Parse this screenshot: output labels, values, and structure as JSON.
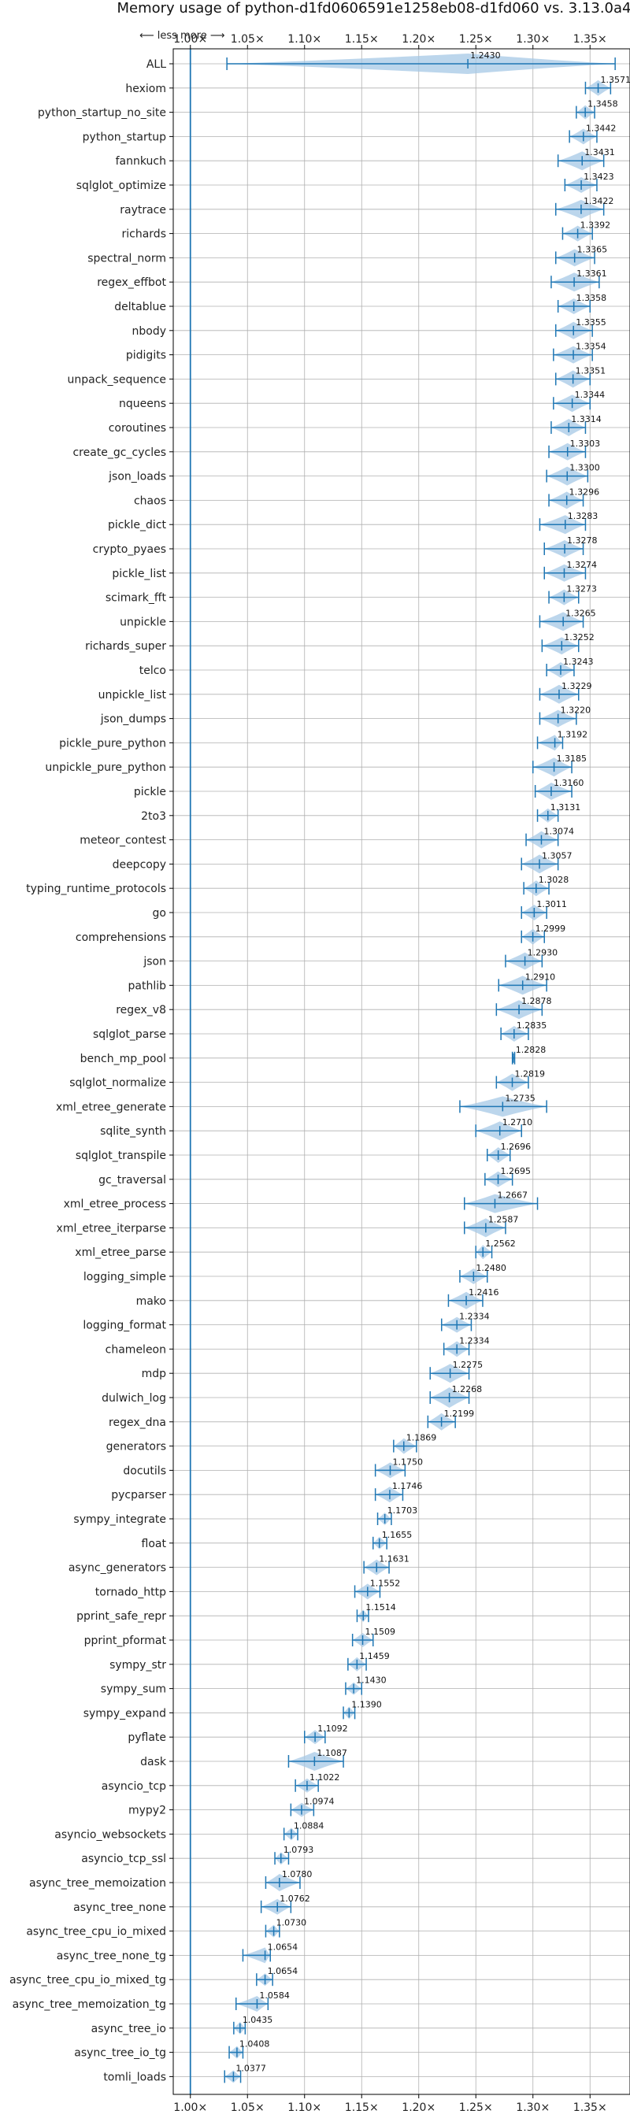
{
  "chart_data": {
    "type": "violin",
    "title": "Memory usage of python-d1fd0606591e1258eb08-d1fd060 vs. 3.13.0a4",
    "direction_hint": "⟵ less   more ⟶",
    "xlim": [
      0.985,
      1.385
    ],
    "xticks": [
      1.0,
      1.05,
      1.1,
      1.15,
      1.2,
      1.25,
      1.3,
      1.35
    ],
    "xtick_labels": [
      "1.00×",
      "1.05×",
      "1.10×",
      "1.15×",
      "1.20×",
      "1.25×",
      "1.30×",
      "1.35×"
    ],
    "grid": true,
    "baseline": 1.0,
    "colors": {
      "violin": "#a6c8e6",
      "line": "#1f77b4",
      "grid": "#b0b0b0"
    },
    "benchmarks": [
      {
        "name": "ALL",
        "value": 1.243,
        "label": "1.2430",
        "min": 1.032,
        "max": 1.372,
        "spread": 0.03
      },
      {
        "name": "hexiom",
        "value": 1.3571,
        "label": "1.3571",
        "min": 1.346,
        "max": 1.368,
        "spread": 0.006
      },
      {
        "name": "python_startup_no_site",
        "value": 1.3458,
        "label": "1.3458",
        "min": 1.338,
        "max": 1.354,
        "spread": 0.005
      },
      {
        "name": "python_startup",
        "value": 1.3442,
        "label": "1.3442",
        "min": 1.332,
        "max": 1.356,
        "spread": 0.006
      },
      {
        "name": "fannkuch",
        "value": 1.3431,
        "label": "1.3431",
        "min": 1.322,
        "max": 1.362,
        "spread": 0.008
      },
      {
        "name": "sqlglot_optimize",
        "value": 1.3423,
        "label": "1.3423",
        "min": 1.328,
        "max": 1.356,
        "spread": 0.006
      },
      {
        "name": "raytrace",
        "value": 1.3422,
        "label": "1.3422",
        "min": 1.32,
        "max": 1.362,
        "spread": 0.008
      },
      {
        "name": "richards",
        "value": 1.3392,
        "label": "1.3392",
        "min": 1.326,
        "max": 1.352,
        "spread": 0.006
      },
      {
        "name": "spectral_norm",
        "value": 1.3365,
        "label": "1.3365",
        "min": 1.32,
        "max": 1.354,
        "spread": 0.007
      },
      {
        "name": "regex_effbot",
        "value": 1.3361,
        "label": "1.3361",
        "min": 1.316,
        "max": 1.358,
        "spread": 0.008
      },
      {
        "name": "deltablue",
        "value": 1.3358,
        "label": "1.3358",
        "min": 1.322,
        "max": 1.35,
        "spread": 0.006
      },
      {
        "name": "nbody",
        "value": 1.3355,
        "label": "1.3355",
        "min": 1.32,
        "max": 1.352,
        "spread": 0.007
      },
      {
        "name": "pidigits",
        "value": 1.3354,
        "label": "1.3354",
        "min": 1.318,
        "max": 1.352,
        "spread": 0.007
      },
      {
        "name": "unpack_sequence",
        "value": 1.3351,
        "label": "1.3351",
        "min": 1.32,
        "max": 1.35,
        "spread": 0.007
      },
      {
        "name": "nqueens",
        "value": 1.3344,
        "label": "1.3344",
        "min": 1.318,
        "max": 1.35,
        "spread": 0.007
      },
      {
        "name": "coroutines",
        "value": 1.3314,
        "label": "1.3314",
        "min": 1.316,
        "max": 1.346,
        "spread": 0.007
      },
      {
        "name": "create_gc_cycles",
        "value": 1.3303,
        "label": "1.3303",
        "min": 1.314,
        "max": 1.346,
        "spread": 0.007
      },
      {
        "name": "json_loads",
        "value": 1.33,
        "label": "1.3300",
        "min": 1.312,
        "max": 1.348,
        "spread": 0.008
      },
      {
        "name": "chaos",
        "value": 1.3296,
        "label": "1.3296",
        "min": 1.314,
        "max": 1.344,
        "spread": 0.007
      },
      {
        "name": "pickle_dict",
        "value": 1.3283,
        "label": "1.3283",
        "min": 1.306,
        "max": 1.346,
        "spread": 0.008
      },
      {
        "name": "crypto_pyaes",
        "value": 1.3278,
        "label": "1.3278",
        "min": 1.31,
        "max": 1.344,
        "spread": 0.007
      },
      {
        "name": "pickle_list",
        "value": 1.3274,
        "label": "1.3274",
        "min": 1.31,
        "max": 1.346,
        "spread": 0.007
      },
      {
        "name": "scimark_fft",
        "value": 1.3273,
        "label": "1.3273",
        "min": 1.314,
        "max": 1.34,
        "spread": 0.006
      },
      {
        "name": "unpickle",
        "value": 1.3265,
        "label": "1.3265",
        "min": 1.306,
        "max": 1.344,
        "spread": 0.008
      },
      {
        "name": "richards_super",
        "value": 1.3252,
        "label": "1.3252",
        "min": 1.308,
        "max": 1.34,
        "spread": 0.007
      },
      {
        "name": "telco",
        "value": 1.3243,
        "label": "1.3243",
        "min": 1.312,
        "max": 1.336,
        "spread": 0.006
      },
      {
        "name": "unpickle_list",
        "value": 1.3229,
        "label": "1.3229",
        "min": 1.306,
        "max": 1.34,
        "spread": 0.008
      },
      {
        "name": "json_dumps",
        "value": 1.322,
        "label": "1.3220",
        "min": 1.306,
        "max": 1.338,
        "spread": 0.007
      },
      {
        "name": "pickle_pure_python",
        "value": 1.3192,
        "label": "1.3192",
        "min": 1.304,
        "max": 1.326,
        "spread": 0.006
      },
      {
        "name": "unpickle_pure_python",
        "value": 1.3185,
        "label": "1.3185",
        "min": 1.3,
        "max": 1.334,
        "spread": 0.008
      },
      {
        "name": "pickle",
        "value": 1.316,
        "label": "1.3160",
        "min": 1.302,
        "max": 1.334,
        "spread": 0.007
      },
      {
        "name": "2to3",
        "value": 1.3131,
        "label": "1.3131",
        "min": 1.304,
        "max": 1.322,
        "spread": 0.005
      },
      {
        "name": "meteor_contest",
        "value": 1.3074,
        "label": "1.3074",
        "min": 1.294,
        "max": 1.322,
        "spread": 0.007
      },
      {
        "name": "deepcopy",
        "value": 1.3057,
        "label": "1.3057",
        "min": 1.29,
        "max": 1.322,
        "spread": 0.008
      },
      {
        "name": "typing_runtime_protocols",
        "value": 1.3028,
        "label": "1.3028",
        "min": 1.292,
        "max": 1.314,
        "spread": 0.006
      },
      {
        "name": "go",
        "value": 1.3011,
        "label": "1.3011",
        "min": 1.29,
        "max": 1.312,
        "spread": 0.006
      },
      {
        "name": "comprehensions",
        "value": 1.2999,
        "label": "1.2999",
        "min": 1.29,
        "max": 1.31,
        "spread": 0.006
      },
      {
        "name": "json",
        "value": 1.293,
        "label": "1.2930",
        "min": 1.276,
        "max": 1.308,
        "spread": 0.007
      },
      {
        "name": "pathlib",
        "value": 1.291,
        "label": "1.2910",
        "min": 1.27,
        "max": 1.312,
        "spread": 0.008
      },
      {
        "name": "regex_v8",
        "value": 1.2878,
        "label": "1.2878",
        "min": 1.268,
        "max": 1.308,
        "spread": 0.008
      },
      {
        "name": "sqlglot_parse",
        "value": 1.2835,
        "label": "1.2835",
        "min": 1.272,
        "max": 1.296,
        "spread": 0.006
      },
      {
        "name": "bench_mp_pool",
        "value": 1.2828,
        "label": "1.2828",
        "min": 1.282,
        "max": 1.284,
        "spread": 0.001
      },
      {
        "name": "sqlglot_normalize",
        "value": 1.2819,
        "label": "1.2819",
        "min": 1.268,
        "max": 1.296,
        "spread": 0.007
      },
      {
        "name": "xml_etree_generate",
        "value": 1.2735,
        "label": "1.2735",
        "min": 1.236,
        "max": 1.312,
        "spread": 0.009
      },
      {
        "name": "sqlite_synth",
        "value": 1.271,
        "label": "1.2710",
        "min": 1.25,
        "max": 1.29,
        "spread": 0.008
      },
      {
        "name": "sqlglot_transpile",
        "value": 1.2696,
        "label": "1.2696",
        "min": 1.26,
        "max": 1.28,
        "spread": 0.006
      },
      {
        "name": "gc_traversal",
        "value": 1.2695,
        "label": "1.2695",
        "min": 1.258,
        "max": 1.282,
        "spread": 0.006
      },
      {
        "name": "xml_etree_process",
        "value": 1.2667,
        "label": "1.2667",
        "min": 1.24,
        "max": 1.304,
        "spread": 0.008
      },
      {
        "name": "xml_etree_iterparse",
        "value": 1.2587,
        "label": "1.2587",
        "min": 1.24,
        "max": 1.276,
        "spread": 0.008
      },
      {
        "name": "xml_etree_parse",
        "value": 1.2562,
        "label": "1.2562",
        "min": 1.25,
        "max": 1.264,
        "spread": 0.005
      },
      {
        "name": "logging_simple",
        "value": 1.248,
        "label": "1.2480",
        "min": 1.236,
        "max": 1.26,
        "spread": 0.006
      },
      {
        "name": "mako",
        "value": 1.2416,
        "label": "1.2416",
        "min": 1.226,
        "max": 1.256,
        "spread": 0.007
      },
      {
        "name": "logging_format",
        "value": 1.2334,
        "label": "1.2334",
        "min": 1.22,
        "max": 1.246,
        "spread": 0.006
      },
      {
        "name": "chameleon",
        "value": 1.2334,
        "label": "1.2334",
        "min": 1.222,
        "max": 1.244,
        "spread": 0.006
      },
      {
        "name": "mdp",
        "value": 1.2275,
        "label": "1.2275",
        "min": 1.21,
        "max": 1.244,
        "spread": 0.008
      },
      {
        "name": "dulwich_log",
        "value": 1.2268,
        "label": "1.2268",
        "min": 1.21,
        "max": 1.244,
        "spread": 0.009
      },
      {
        "name": "regex_dna",
        "value": 1.2199,
        "label": "1.2199",
        "min": 1.208,
        "max": 1.232,
        "spread": 0.007
      },
      {
        "name": "generators",
        "value": 1.1869,
        "label": "1.1869",
        "min": 1.178,
        "max": 1.198,
        "spread": 0.006
      },
      {
        "name": "docutils",
        "value": 1.175,
        "label": "1.1750",
        "min": 1.162,
        "max": 1.188,
        "spread": 0.006
      },
      {
        "name": "pycparser",
        "value": 1.1746,
        "label": "1.1746",
        "min": 1.162,
        "max": 1.186,
        "spread": 0.006
      },
      {
        "name": "sympy_integrate",
        "value": 1.1703,
        "label": "1.1703",
        "min": 1.164,
        "max": 1.176,
        "spread": 0.004
      },
      {
        "name": "float",
        "value": 1.1655,
        "label": "1.1655",
        "min": 1.16,
        "max": 1.172,
        "spread": 0.004
      },
      {
        "name": "async_generators",
        "value": 1.1631,
        "label": "1.1631",
        "min": 1.152,
        "max": 1.174,
        "spread": 0.006
      },
      {
        "name": "tornado_http",
        "value": 1.1552,
        "label": "1.1552",
        "min": 1.144,
        "max": 1.166,
        "spread": 0.006
      },
      {
        "name": "pprint_safe_repr",
        "value": 1.1514,
        "label": "1.1514",
        "min": 1.146,
        "max": 1.156,
        "spread": 0.004
      },
      {
        "name": "pprint_pformat",
        "value": 1.1509,
        "label": "1.1509",
        "min": 1.142,
        "max": 1.16,
        "spread": 0.005
      },
      {
        "name": "sympy_str",
        "value": 1.1459,
        "label": "1.1459",
        "min": 1.138,
        "max": 1.154,
        "spread": 0.005
      },
      {
        "name": "sympy_sum",
        "value": 1.143,
        "label": "1.1430",
        "min": 1.136,
        "max": 1.15,
        "spread": 0.004
      },
      {
        "name": "sympy_expand",
        "value": 1.139,
        "label": "1.1390",
        "min": 1.134,
        "max": 1.144,
        "spread": 0.004
      },
      {
        "name": "pyflate",
        "value": 1.1092,
        "label": "1.1092",
        "min": 1.1,
        "max": 1.118,
        "spread": 0.005
      },
      {
        "name": "dask",
        "value": 1.1087,
        "label": "1.1087",
        "min": 1.086,
        "max": 1.134,
        "spread": 0.008
      },
      {
        "name": "asyncio_tcp",
        "value": 1.1022,
        "label": "1.1022",
        "min": 1.092,
        "max": 1.112,
        "spread": 0.005
      },
      {
        "name": "mypy2",
        "value": 1.0974,
        "label": "1.0974",
        "min": 1.088,
        "max": 1.108,
        "spread": 0.005
      },
      {
        "name": "asyncio_websockets",
        "value": 1.0884,
        "label": "1.0884",
        "min": 1.082,
        "max": 1.094,
        "spread": 0.004
      },
      {
        "name": "asyncio_tcp_ssl",
        "value": 1.0793,
        "label": "1.0793",
        "min": 1.074,
        "max": 1.086,
        "spread": 0.004
      },
      {
        "name": "async_tree_memoization",
        "value": 1.078,
        "label": "1.0780",
        "min": 1.066,
        "max": 1.096,
        "spread": 0.007
      },
      {
        "name": "async_tree_none",
        "value": 1.0762,
        "label": "1.0762",
        "min": 1.062,
        "max": 1.088,
        "spread": 0.006
      },
      {
        "name": "async_tree_cpu_io_mixed",
        "value": 1.073,
        "label": "1.0730",
        "min": 1.066,
        "max": 1.078,
        "spread": 0.004
      },
      {
        "name": "async_tree_none_tg",
        "value": 1.0654,
        "label": "1.0654",
        "min": 1.046,
        "max": 1.07,
        "spread": 0.006
      },
      {
        "name": "async_tree_cpu_io_mixed_tg",
        "value": 1.0654,
        "label": "1.0654",
        "min": 1.058,
        "max": 1.072,
        "spread": 0.004
      },
      {
        "name": "async_tree_memoization_tg",
        "value": 1.0584,
        "label": "1.0584",
        "min": 1.04,
        "max": 1.068,
        "spread": 0.006
      },
      {
        "name": "async_tree_io",
        "value": 1.0435,
        "label": "1.0435",
        "min": 1.038,
        "max": 1.048,
        "spread": 0.004
      },
      {
        "name": "async_tree_io_tg",
        "value": 1.0408,
        "label": "1.0408",
        "min": 1.034,
        "max": 1.046,
        "spread": 0.004
      },
      {
        "name": "tomli_loads",
        "value": 1.0377,
        "label": "1.0377",
        "min": 1.03,
        "max": 1.044,
        "spread": 0.004
      }
    ]
  }
}
